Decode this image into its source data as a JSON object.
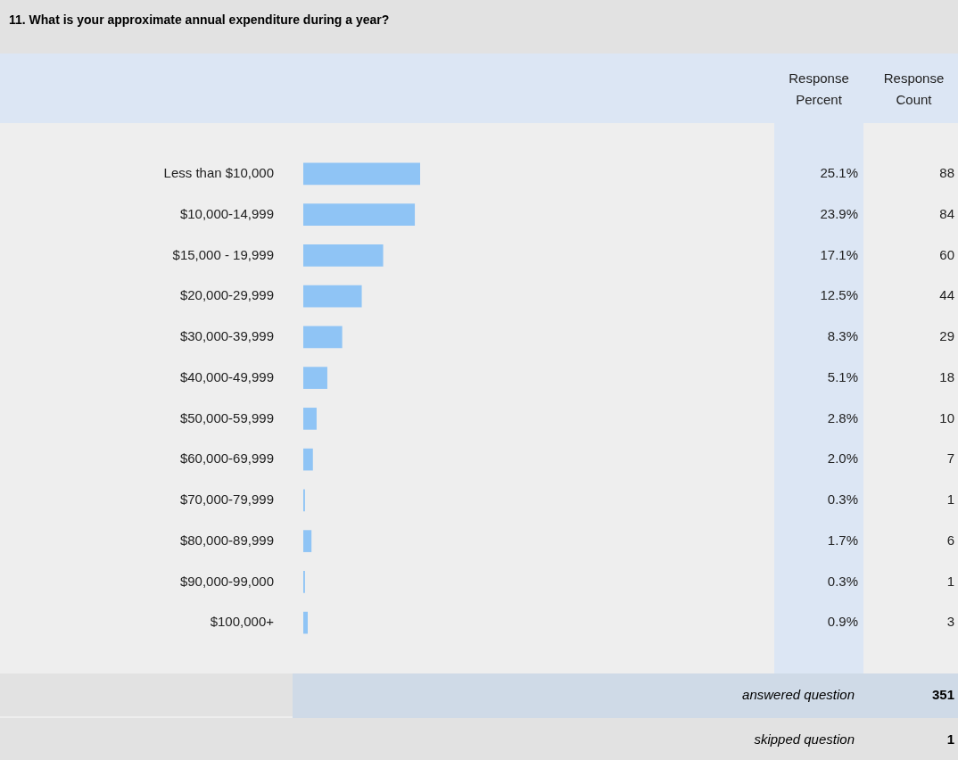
{
  "chart_data": {
    "type": "bar",
    "orientation": "horizontal",
    "title": "11. What is your approximate annual expenditure during a year?",
    "categories": [
      "Less than $10,000",
      "$10,000-14,999",
      "$15,000 - 19,999",
      "$20,000-29,999",
      "$30,000-39,999",
      "$40,000-49,999",
      "$50,000-59,999",
      "$60,000-69,999",
      "$70,000-79,999",
      "$80,000-89,999",
      "$90,000-99,000",
      "$100,000+"
    ],
    "values": [
      25.1,
      23.9,
      17.1,
      12.5,
      8.3,
      5.1,
      2.8,
      2.0,
      0.3,
      1.7,
      0.3,
      0.9
    ],
    "value_labels": [
      "25.1%",
      "23.9%",
      "17.1%",
      "12.5%",
      "8.3%",
      "5.1%",
      "2.8%",
      "2.0%",
      "0.3%",
      "1.7%",
      "0.3%",
      "0.9%"
    ],
    "color": "#8fc4f5",
    "tick_labels": "y",
    "annotations": [
      "Response Percent",
      "Response Count",
      "answered question",
      "351",
      "skipped question",
      "1",
      "88",
      "84",
      "60",
      "44",
      "29",
      "18",
      "10",
      "7",
      "1",
      "6",
      "1",
      "3"
    ]
  }
}
